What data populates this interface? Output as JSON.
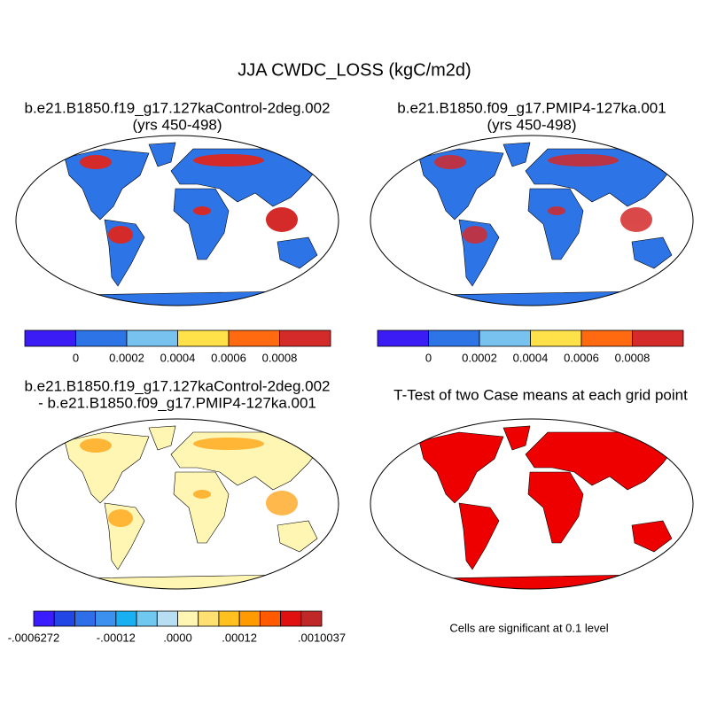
{
  "title": "JJA CWDC_LOSS (kgC/m2d)",
  "panels": [
    {
      "title": [
        "b.e21.B1850.f19_g17.127kaControl-2deg.002",
        "(yrs 450-498)"
      ],
      "colorbar": {
        "colors": [
          "#3c1cf5",
          "#2d74e6",
          "#78c2f0",
          "#ffe24a",
          "#ff6a10",
          "#d42a2a"
        ],
        "labels": [
          "0",
          "0.0002",
          "0.0004",
          "0.0006",
          "0.0008"
        ]
      }
    },
    {
      "title": [
        "b.e21.B1850.f09_g17.PMIP4-127ka.001",
        "(yrs 450-498)"
      ],
      "colorbar": {
        "colors": [
          "#3c1cf5",
          "#2d74e6",
          "#78c2f0",
          "#ffe24a",
          "#ff6a10",
          "#d42a2a"
        ],
        "labels": [
          "0",
          "0.0002",
          "0.0004",
          "0.0006",
          "0.0008"
        ]
      }
    },
    {
      "title": [
        "b.e21.B1850.f19_g17.127kaControl-2deg.002",
        "- b.e21.B1850.f09_g17.PMIP4-127ka.001"
      ],
      "colorbar": {
        "colors": [
          "#3a1cff",
          "#2246e6",
          "#2e6ee8",
          "#3c90f0",
          "#18b0f0",
          "#70c8f0",
          "#b8def4",
          "#fff6b4",
          "#ffe070",
          "#ffc020",
          "#ff9a00",
          "#ff5a00",
          "#e01010",
          "#c02828"
        ],
        "labels": [
          "-.0006272",
          "-.00012",
          ".0000",
          ".00012",
          ".0010037"
        ]
      }
    },
    {
      "title": [
        "T-Test of two Case means at each grid point"
      ],
      "note": "Cells are significant at 0.1 level"
    }
  ]
}
